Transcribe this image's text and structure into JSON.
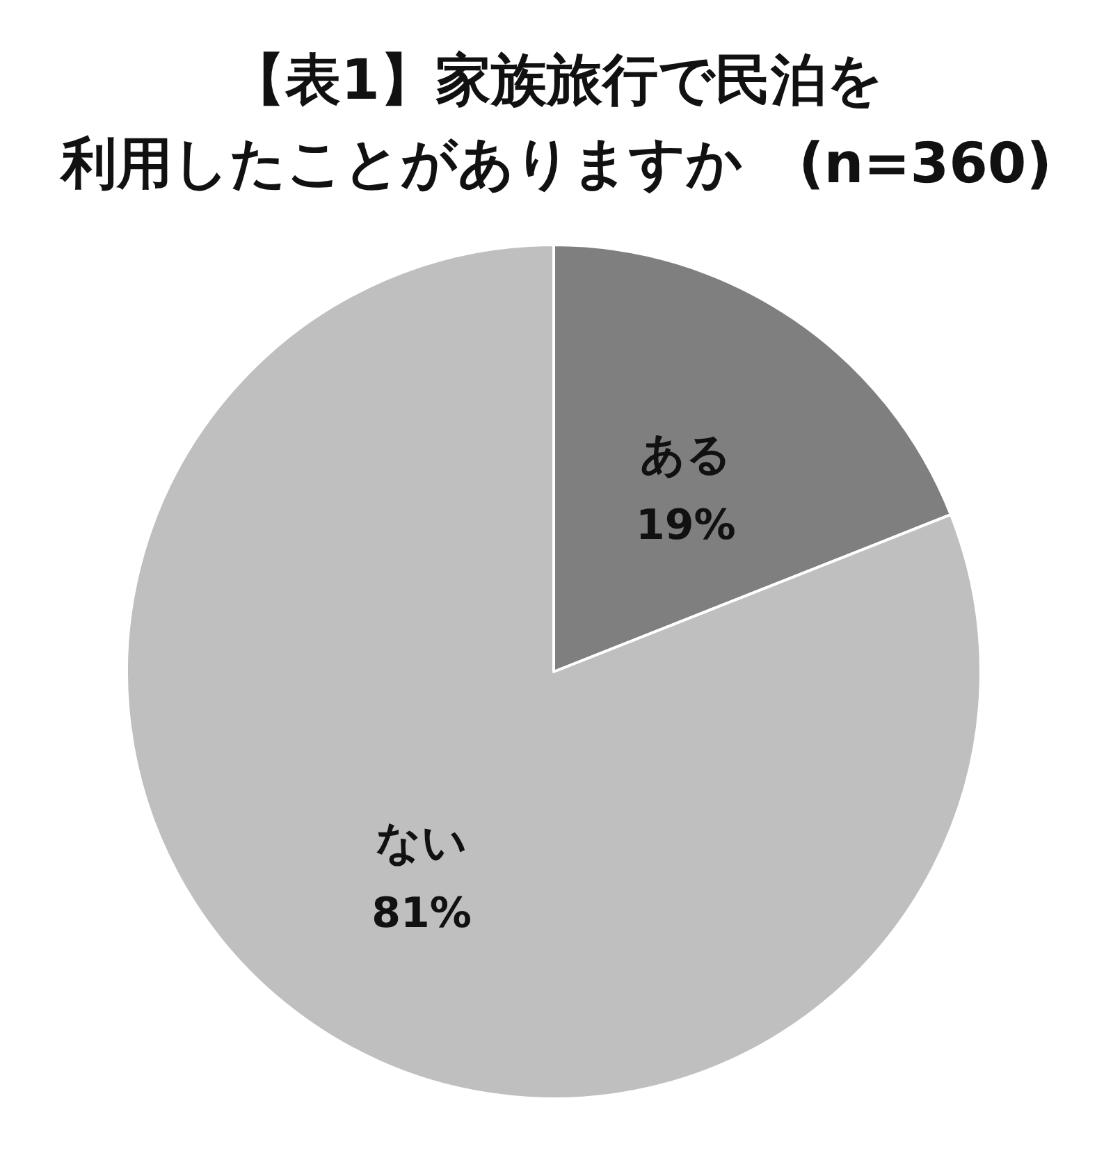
{
  "chart_data": {
    "type": "pie",
    "title": "【表1】家族旅行で民泊を",
    "subtitle": "利用したことがありますか　(n=360)",
    "categories": [
      "ある",
      "ない"
    ],
    "values": [
      19,
      81
    ],
    "value_labels": [
      "19%",
      "81%"
    ],
    "colors": [
      "#7f7f7f",
      "#bfbfbf"
    ],
    "legend": false
  }
}
